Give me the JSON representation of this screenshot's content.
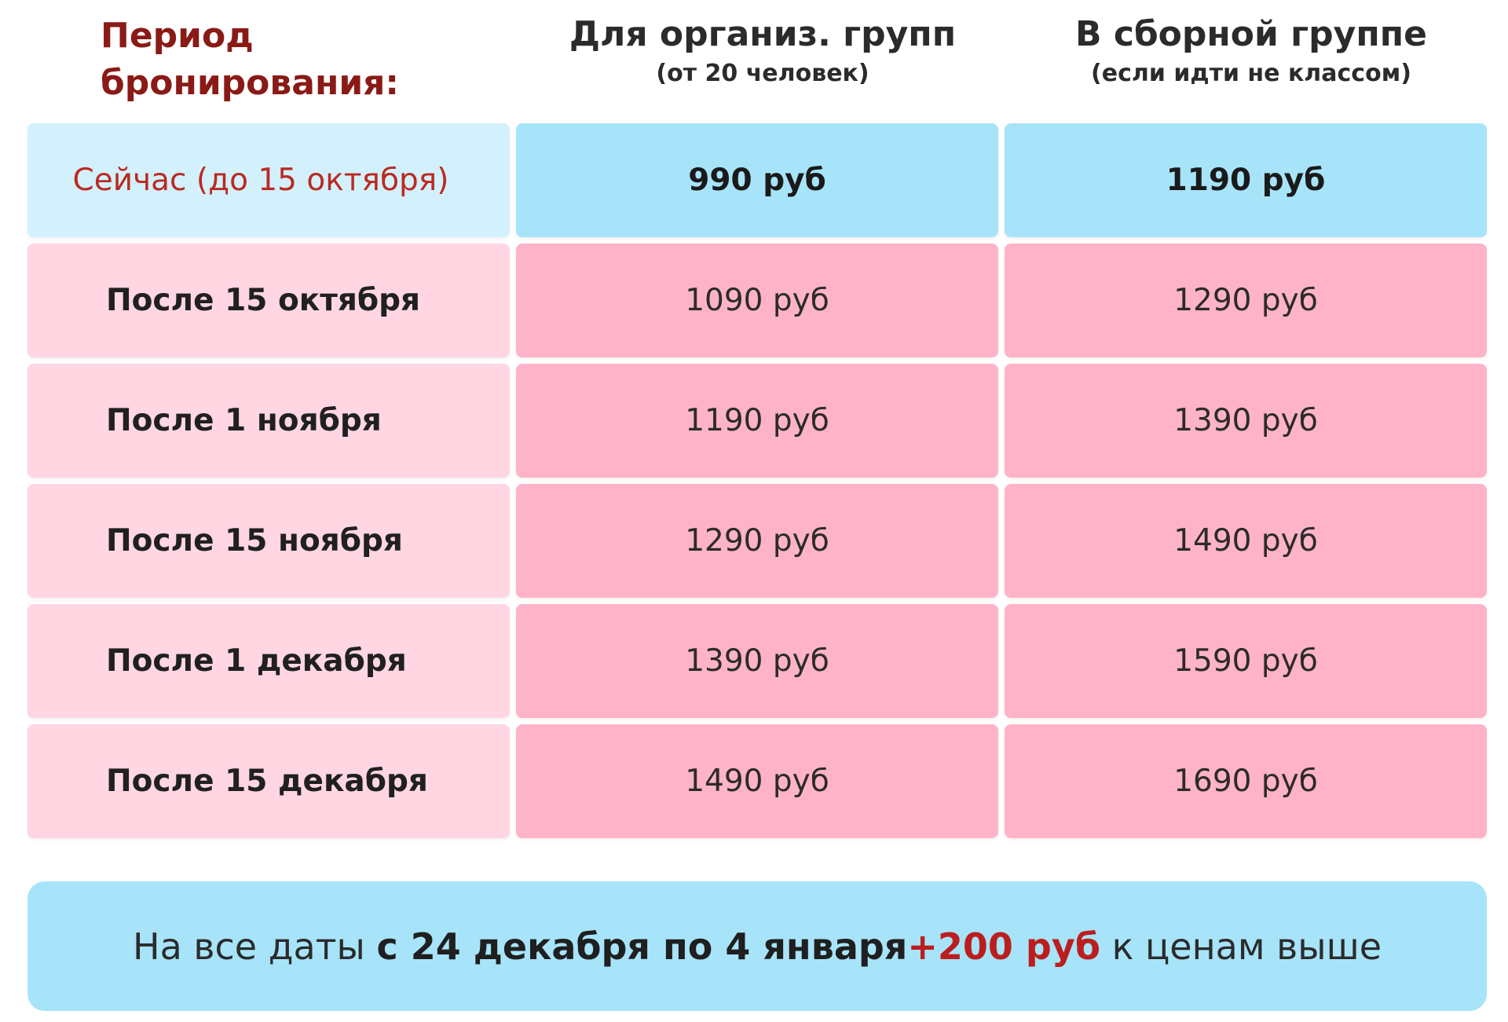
{
  "header": {
    "period_label": "Период бронирования:",
    "columns": [
      {
        "title": "Для организ. групп",
        "subtitle": "(от 20 человек)"
      },
      {
        "title": "В сборной группе",
        "subtitle": "(если идти не классом)"
      }
    ]
  },
  "rows": [
    {
      "period": "Сейчас (до 15 октября)",
      "org_group": "990 руб",
      "combined_group": "1190 руб",
      "highlight": true
    },
    {
      "period": "После 15 октября",
      "org_group": "1090 руб",
      "combined_group": "1290 руб"
    },
    {
      "period": "После 1 ноября",
      "org_group": "1190 руб",
      "combined_group": "1390 руб"
    },
    {
      "period": "После 15 ноября",
      "org_group": "1290 руб",
      "combined_group": "1490 руб"
    },
    {
      "period": "После 1 декабря",
      "org_group": "1390 руб",
      "combined_group": "1590 руб"
    },
    {
      "period": "После 15 декабря",
      "org_group": "1490 руб",
      "combined_group": "1690 руб"
    }
  ],
  "footer": {
    "prefix": "На все даты ",
    "dates": "с 24 декабря по 4 января",
    "surcharge": "+200 руб",
    "suffix": " к ценам выше"
  },
  "colors": {
    "period_header": "#8a1a16",
    "highlight_label_bg": "#d3f1fc",
    "highlight_price_bg": "#a7e4fa",
    "row_label_bg": "#ffd6e1",
    "row_price_bg": "#ffb3c8",
    "accent_red": "#bb1e1e"
  }
}
